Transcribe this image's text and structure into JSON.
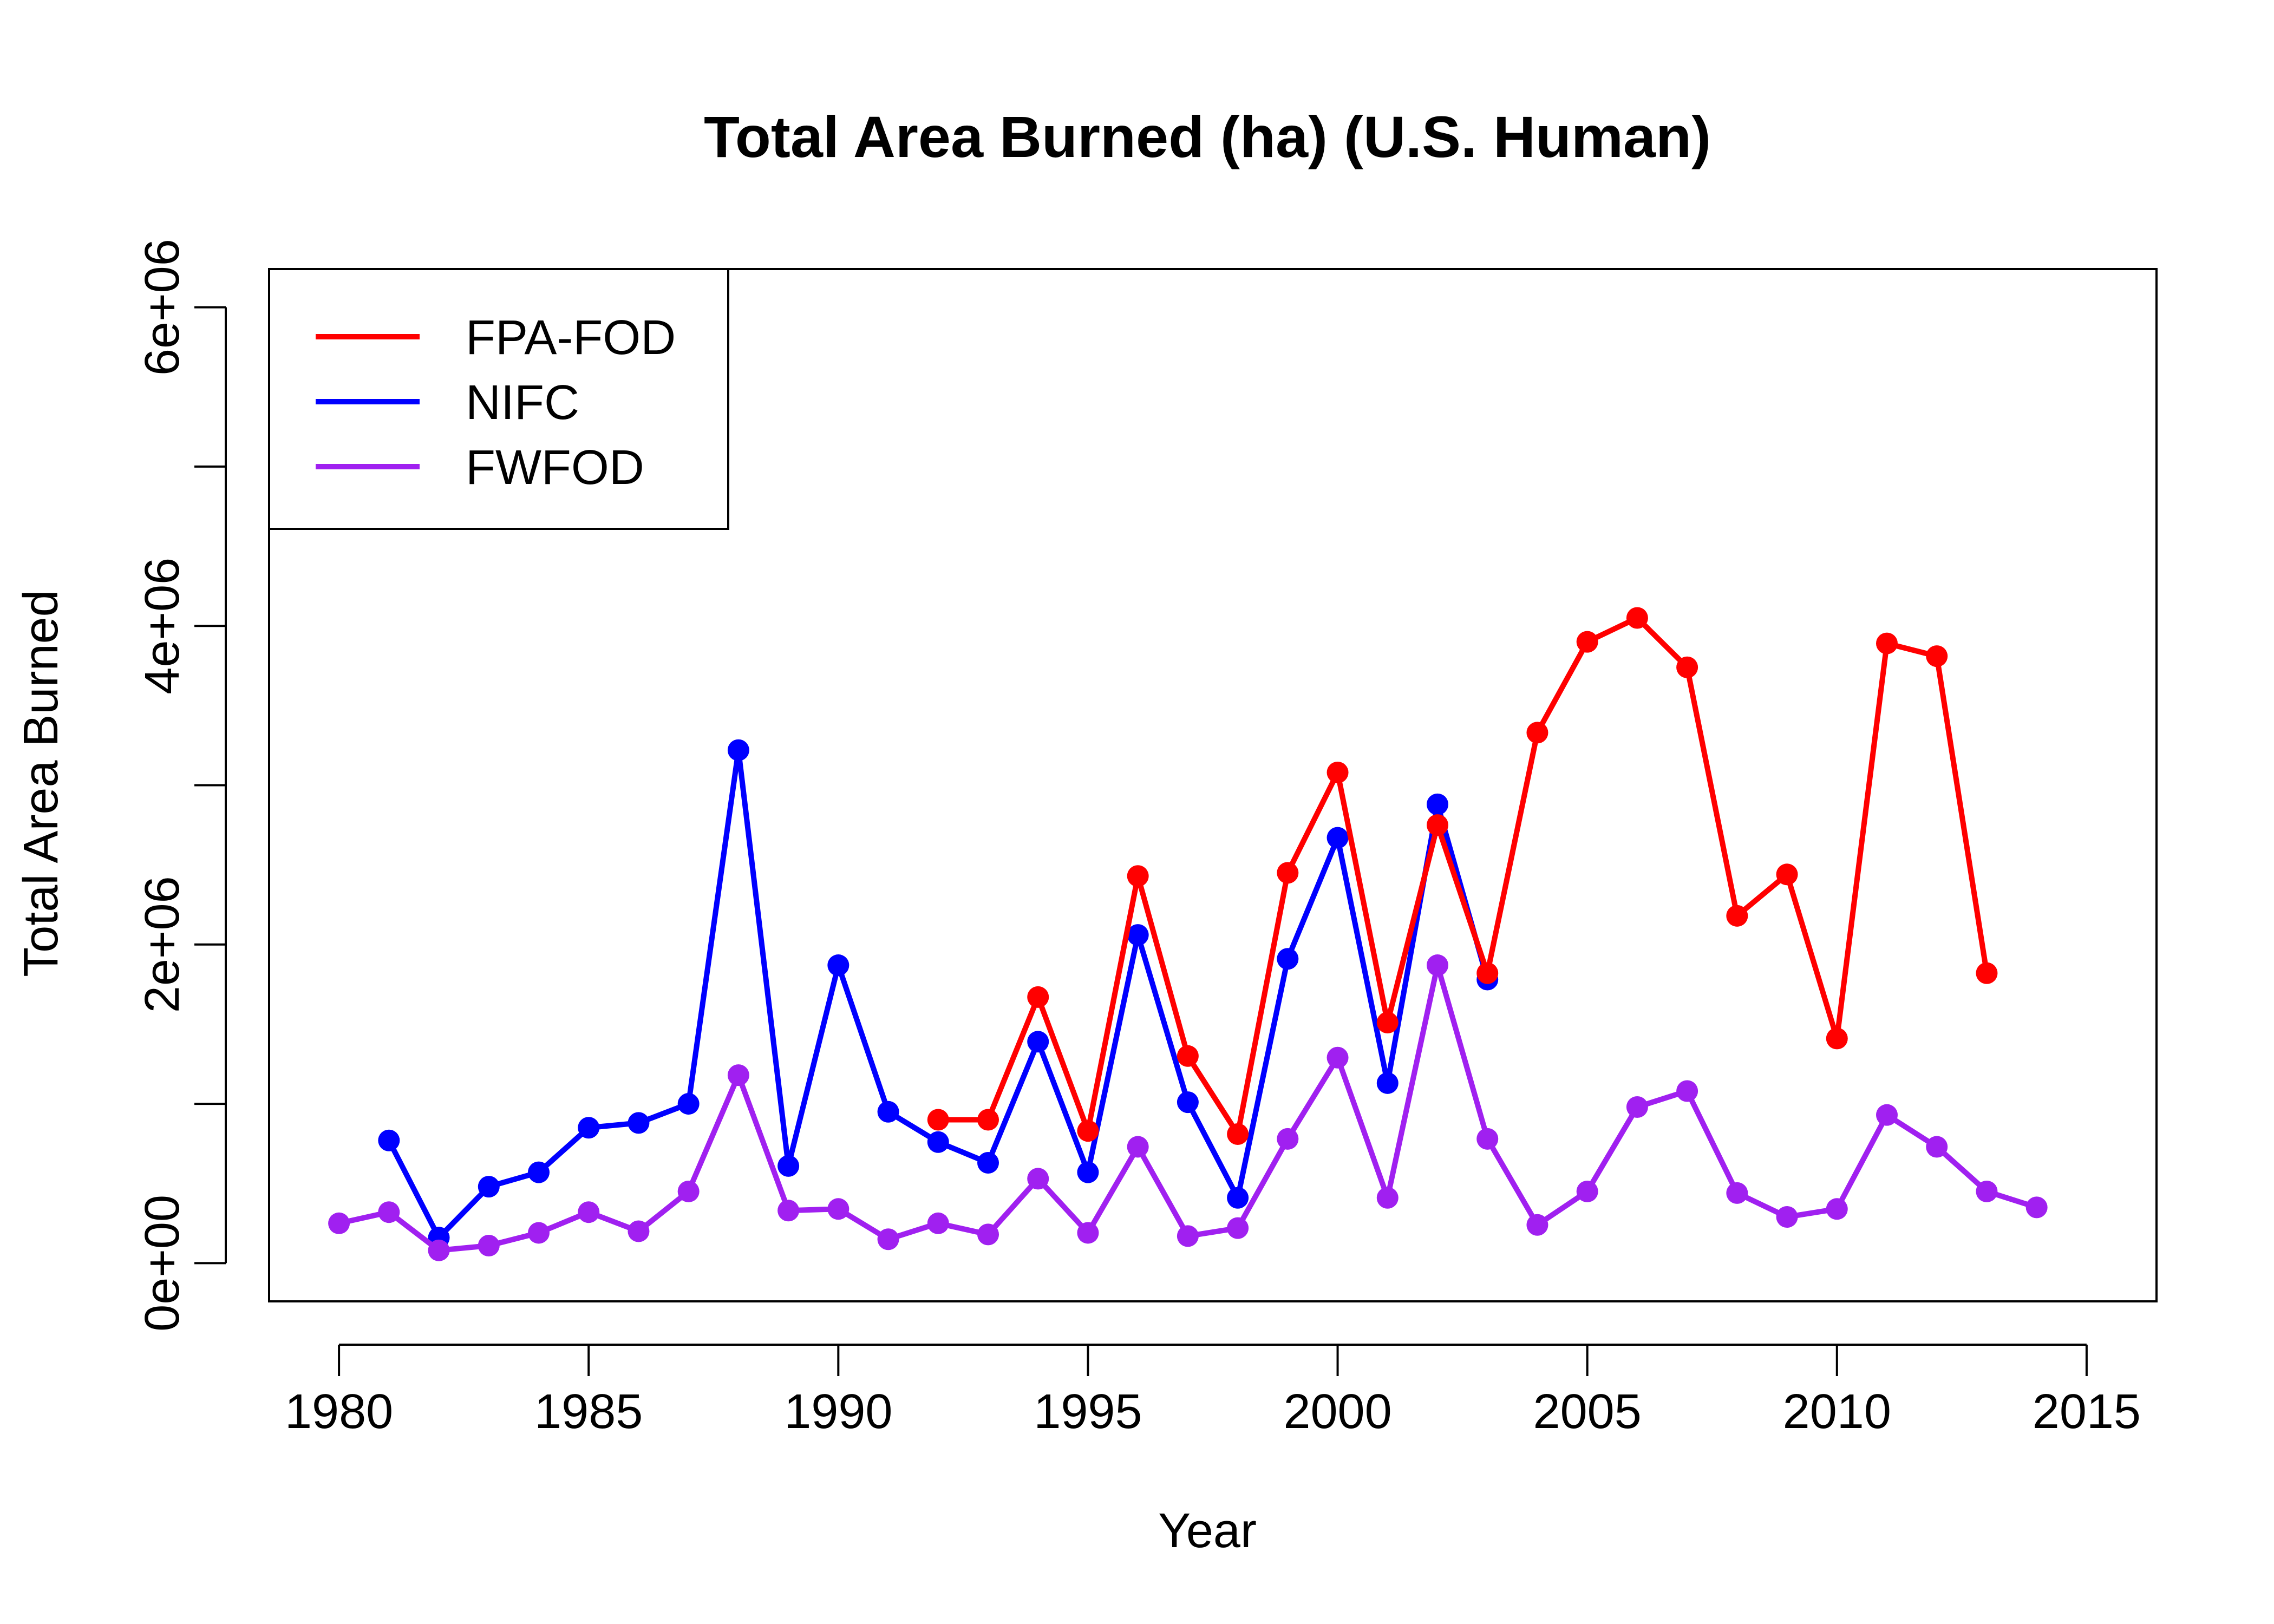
{
  "chart_data": {
    "type": "line",
    "title": "Total Area Burned (ha) (U.S. Human)",
    "xlabel": "Year",
    "ylabel": "Total Area Burned",
    "xlim": [
      1978.6,
      2016.4
    ],
    "ylim": [
      -240000,
      6240000
    ],
    "x_ticks": [
      1980,
      1985,
      1990,
      1995,
      2000,
      2005,
      2010,
      2015
    ],
    "x_tick_labels": [
      "1980",
      "1985",
      "1990",
      "1995",
      "2000",
      "2005",
      "2010",
      "2015"
    ],
    "y_ticks": [
      0,
      1000000,
      2000000,
      3000000,
      4000000,
      5000000,
      6000000
    ],
    "y_tick_labels": [
      {
        "value": 0,
        "label": "0e+00"
      },
      {
        "value": 2000000,
        "label": "2e+06"
      },
      {
        "value": 4000000,
        "label": "4e+06"
      },
      {
        "value": 6000000,
        "label": "6e+06"
      }
    ],
    "grid": false,
    "legend_position": "top-left",
    "series": [
      {
        "name": "FPA-FOD",
        "color": "#ff0000",
        "x": [
          1992,
          1993,
          1994,
          1995,
          1996,
          1997,
          1998,
          1999,
          2000,
          2001,
          2002,
          2003,
          2004,
          2005,
          2006,
          2007,
          2008,
          2009,
          2010,
          2011,
          2012,
          2013
        ],
        "y": [
          900000,
          900000,
          1670000,
          830000,
          2430000,
          1300000,
          810000,
          2450000,
          3080000,
          1510000,
          2750000,
          1820000,
          3330000,
          3900000,
          4050000,
          3740000,
          2180000,
          2440000,
          1410000,
          3890000,
          3810000,
          1820000
        ]
      },
      {
        "name": "NIFC",
        "color": "#0000ff",
        "x": [
          1981,
          1982,
          1983,
          1984,
          1985,
          1986,
          1987,
          1988,
          1989,
          1990,
          1991,
          1992,
          1993,
          1994,
          1995,
          1996,
          1997,
          1998,
          1999,
          2000,
          2001,
          2002,
          2003
        ],
        "y": [
          770000,
          160000,
          480000,
          570000,
          850000,
          880000,
          1000000,
          3220000,
          610000,
          1870000,
          950000,
          760000,
          630000,
          1390000,
          570000,
          2060000,
          1010000,
          410000,
          1910000,
          2670000,
          1130000,
          2880000,
          1780000
        ]
      },
      {
        "name": "FWFOD",
        "color": "#a020f0",
        "x": [
          1980,
          1981,
          1982,
          1983,
          1984,
          1985,
          1986,
          1987,
          1988,
          1989,
          1990,
          1991,
          1992,
          1993,
          1994,
          1995,
          1996,
          1997,
          1998,
          1999,
          2000,
          2001,
          2002,
          2003,
          2004,
          2005,
          2006,
          2007,
          2008,
          2009,
          2010,
          2011,
          2012,
          2013,
          2014
        ],
        "y": [
          250000,
          320000,
          80000,
          110000,
          190000,
          320000,
          200000,
          450000,
          1180000,
          330000,
          340000,
          150000,
          250000,
          180000,
          530000,
          190000,
          730000,
          170000,
          220000,
          780000,
          1290000,
          410000,
          1870000,
          780000,
          240000,
          450000,
          980000,
          1080000,
          440000,
          290000,
          340000,
          930000,
          730000,
          450000,
          350000
        ]
      }
    ]
  }
}
